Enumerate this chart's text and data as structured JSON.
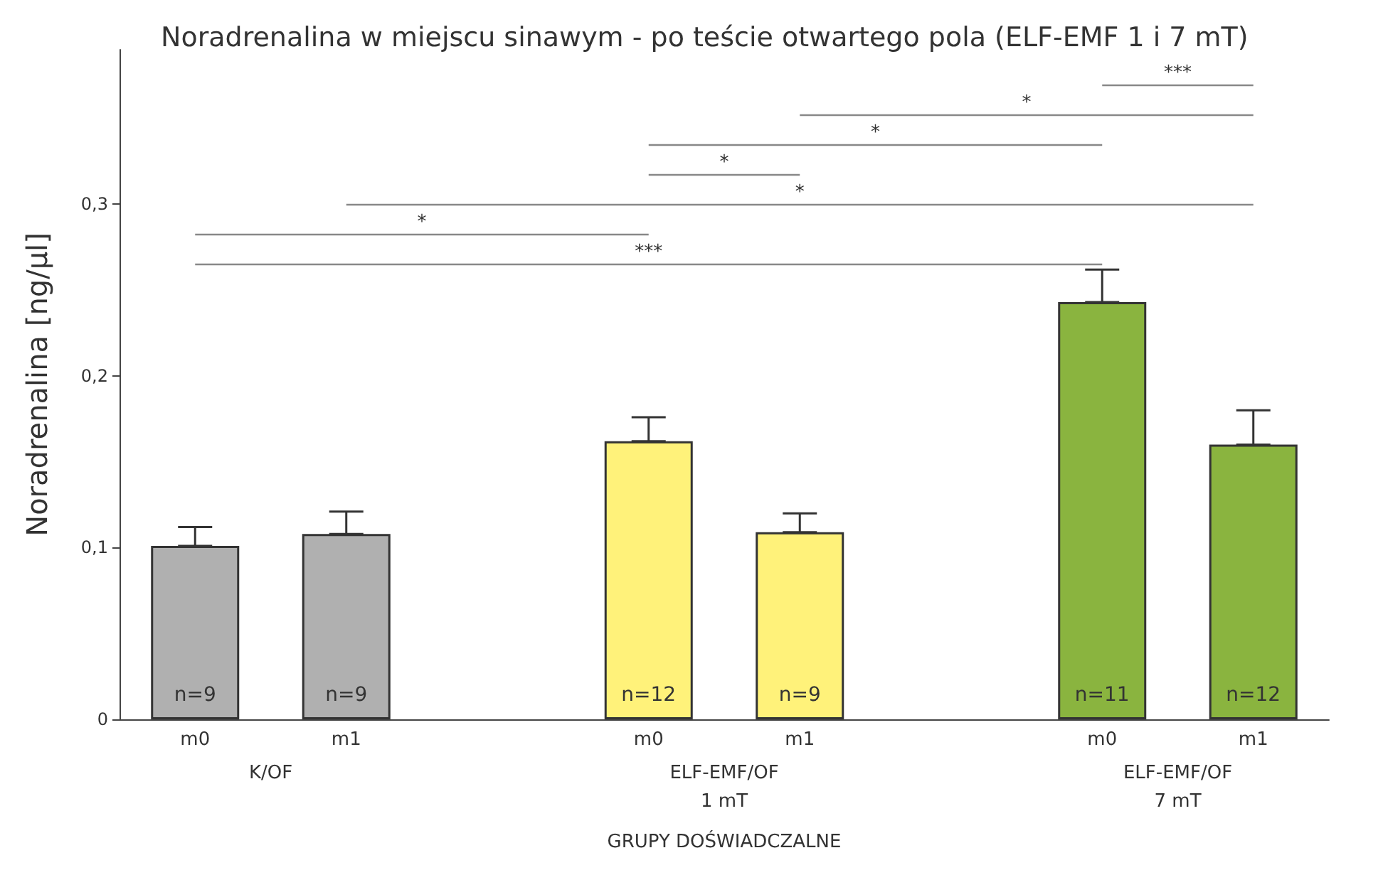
{
  "chart_data": {
    "type": "bar",
    "title": "Noradrenalina w miejscu sinawym - po teście otwartego pola (ELF-EMF 1 i 7 mT)",
    "xlabel": "GRUPY DOŚWIADCZALNE",
    "ylabel": "Noradrenalina [ng/µl]",
    "categories": [
      "m0",
      "m1",
      null,
      "m0",
      "m1",
      null,
      "m0",
      "m1"
    ],
    "values": [
      0.101,
      0.108,
      null,
      0.162,
      0.109,
      null,
      0.243,
      0.16
    ],
    "colors": [
      "#b0b0b0",
      "#b0b0b0",
      null,
      "#fff27a",
      "#fff27a",
      null,
      "#8ab43f",
      "#8ab43f"
    ],
    "errors": [
      [
        0.101,
        0.112
      ],
      [
        0.108,
        0.121
      ],
      null,
      [
        0.162,
        0.176
      ],
      [
        0.109,
        0.12
      ],
      null,
      [
        0.243,
        0.262
      ],
      [
        0.16,
        0.18
      ]
    ],
    "ylim": [
      0,
      0.39
    ],
    "yticks": [
      0,
      {
        "value": 0.1,
        "label": "0,1"
      },
      {
        "value": 0.2,
        "label": "0,2"
      },
      {
        "value": 0.3,
        "label": "0,3"
      }
    ],
    "annotations": [
      "K/OF",
      "ELF-EMF/OF\n1 mT",
      "ELF-EMF/OF\n7 mT",
      "n=9",
      "n=9",
      "n=12",
      "n=9",
      "n=11",
      "n=12",
      "***",
      "*",
      "*",
      "*",
      "*",
      "*",
      "***"
    ]
  }
}
